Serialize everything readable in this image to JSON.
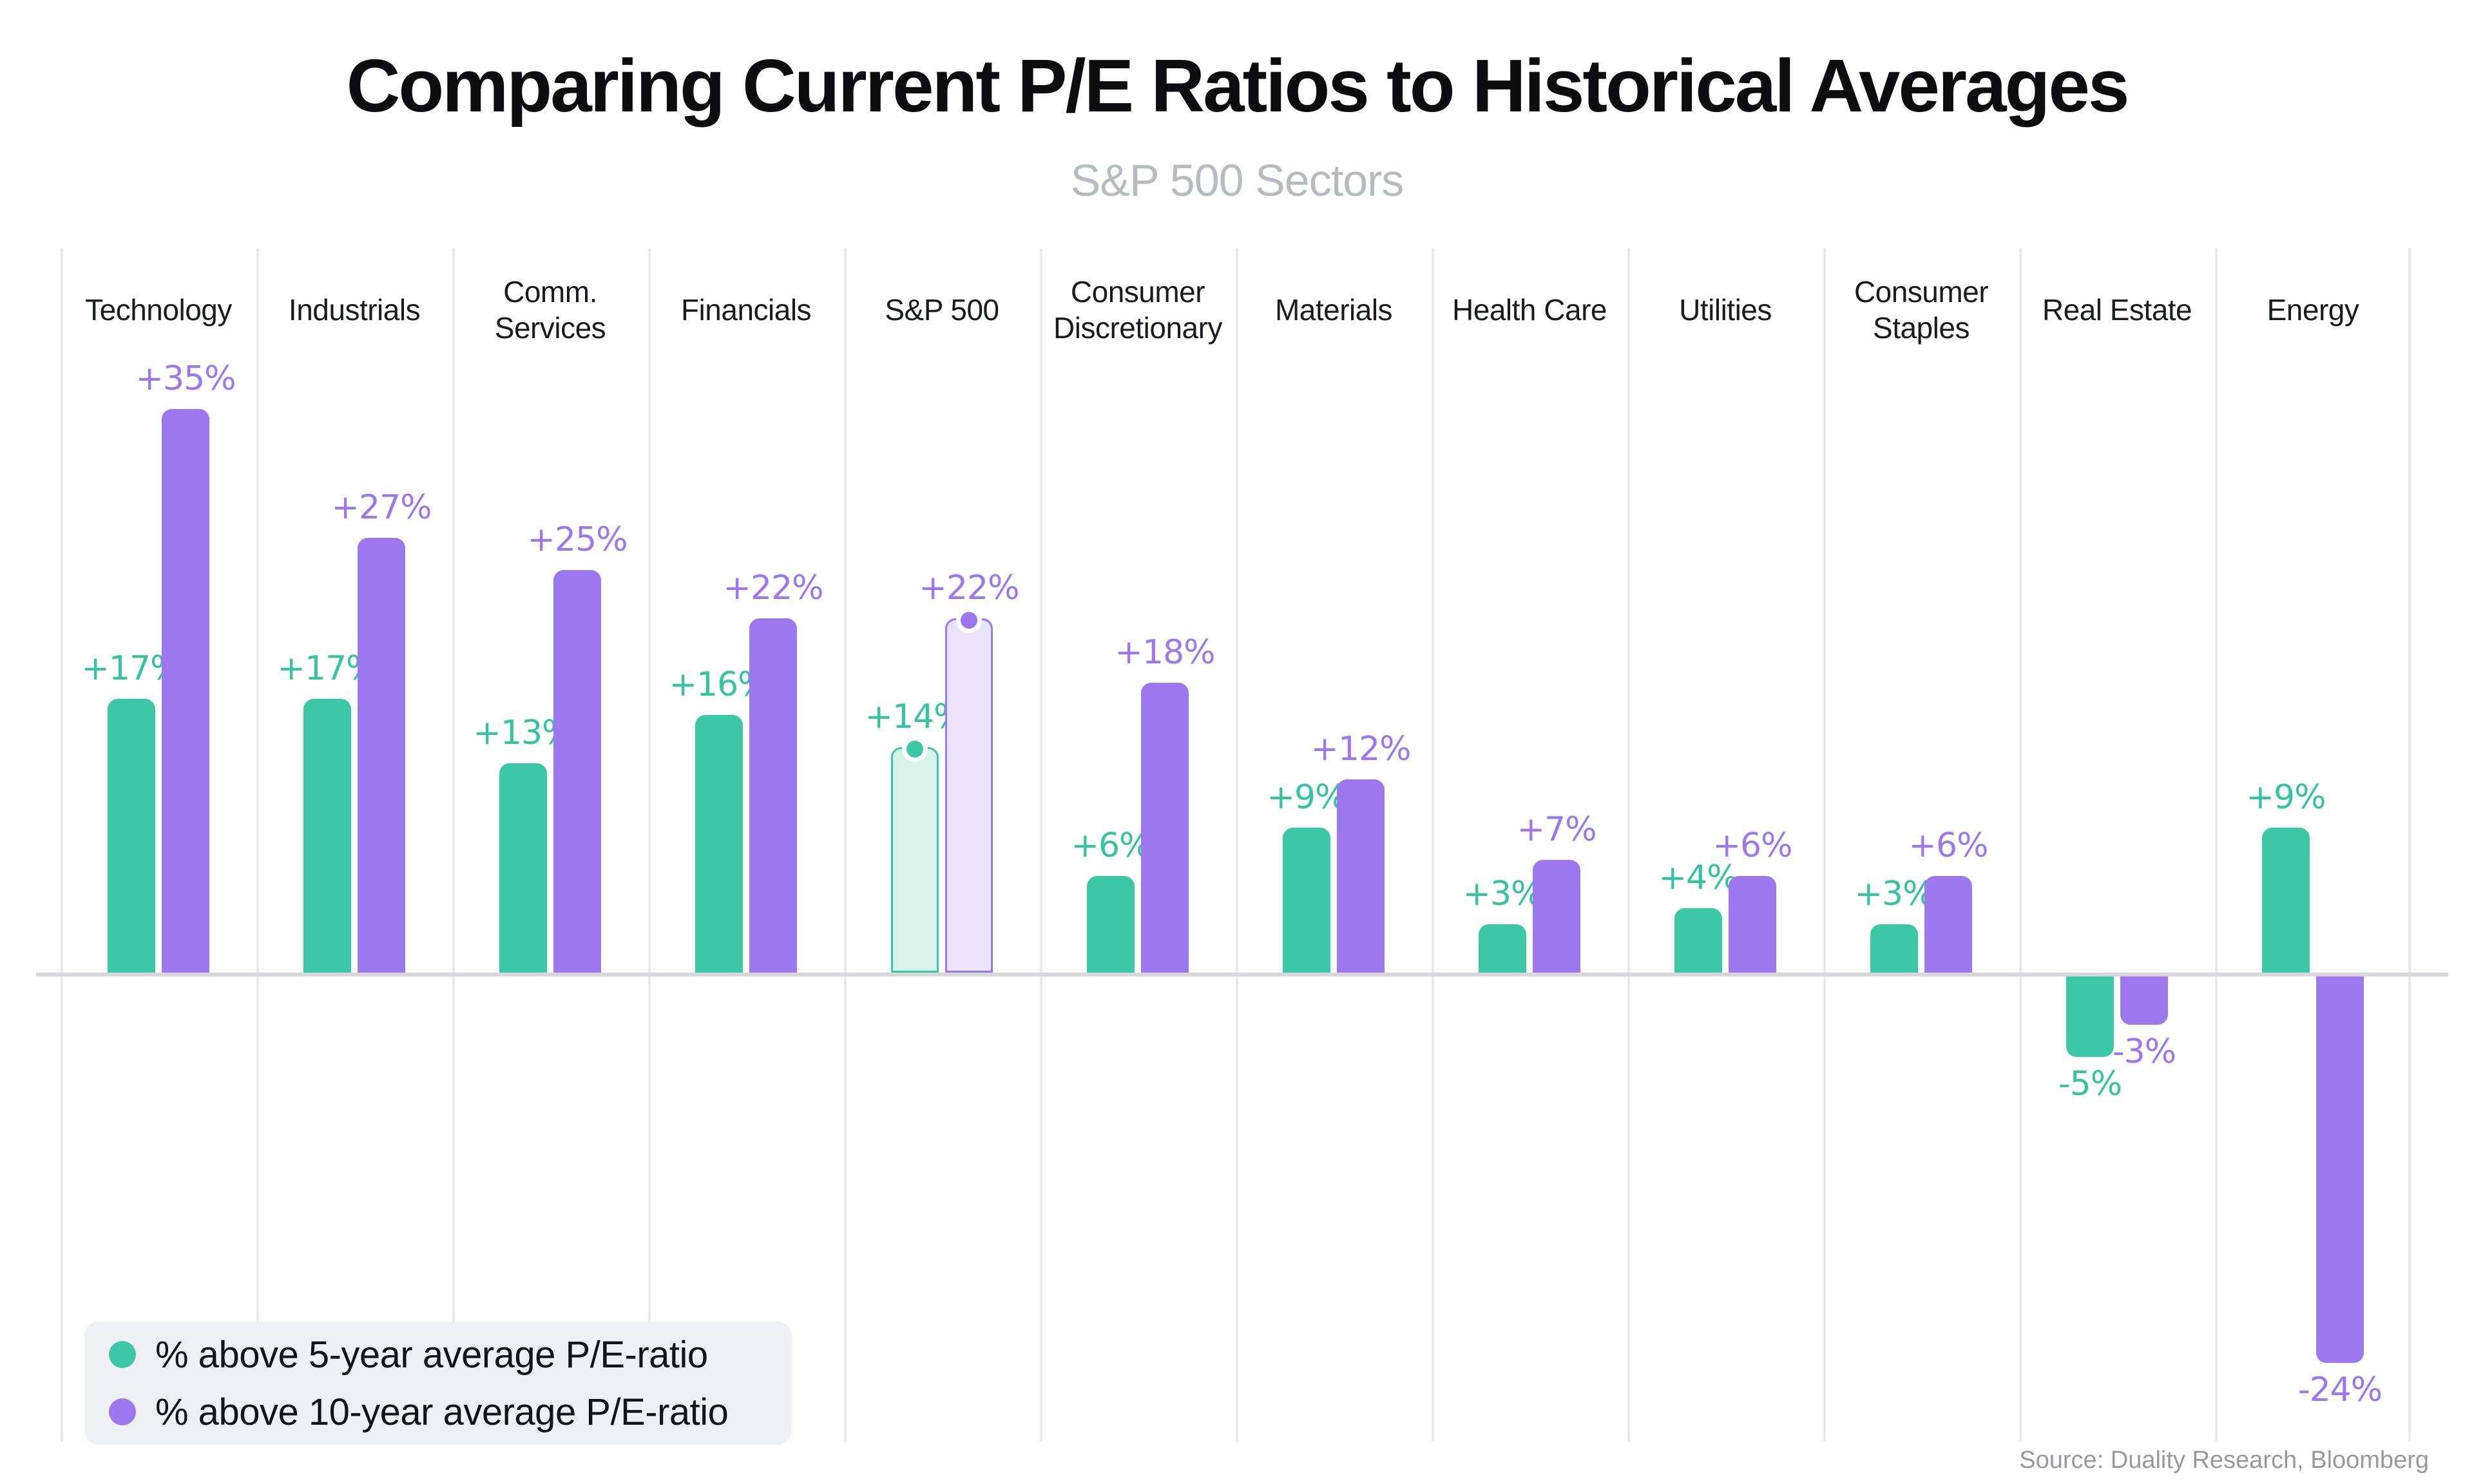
{
  "header": {
    "title": "Comparing Current P/E Ratios to Historical Averages",
    "subtitle": "S&P 500 Sectors"
  },
  "chart_data": {
    "type": "bar",
    "title": "Comparing Current P/E Ratios to Historical Averages",
    "subtitle": "S&P 500 Sectors",
    "categories": [
      "Technology",
      "Industrials",
      "Comm.\nServices",
      "Financials",
      "S&P 500",
      "Consumer\nDiscretionary",
      "Materials",
      "Health Care",
      "Utilities",
      "Consumer\nStaples",
      "Real Estate",
      "Energy"
    ],
    "series": [
      {
        "name": "% above 5-year average P/E-ratio",
        "color_key": "green",
        "values": [
          17,
          17,
          13,
          16,
          14,
          6,
          9,
          3,
          4,
          3,
          -5,
          9
        ],
        "labels": [
          "+17%",
          "+17%",
          "+13%",
          "+16%",
          "+14%",
          "+6%",
          "+9%",
          "+3%",
          "+4%",
          "+3%",
          "-5%",
          "+9%"
        ]
      },
      {
        "name": "% above 10-year average P/E-ratio",
        "color_key": "purple",
        "values": [
          35,
          27,
          25,
          22,
          22,
          18,
          12,
          7,
          6,
          6,
          -3,
          -24
        ],
        "labels": [
          "+35%",
          "+27%",
          "+25%",
          "+22%",
          "+22%",
          "+18%",
          "+12%",
          "+7%",
          "+6%",
          "+6%",
          "-3%",
          "-24%"
        ]
      }
    ],
    "highlight_category": "S&P 500",
    "highlight_index": 4,
    "axis": {
      "baseline_value": 0,
      "unit": "%",
      "gridlines": "vertical-between-categories",
      "value_labels_on_bars": true
    },
    "legend_position": "bottom-left",
    "source": "Source: Duality Research, Bloomberg"
  },
  "legend": {
    "items": [
      {
        "icon": "green-dot-icon",
        "label": "% above 5-year average P/E-ratio"
      },
      {
        "icon": "purple-dot-icon",
        "label": "% above 10-year average P/E-ratio"
      }
    ]
  },
  "source_note": "Source: Duality Research, Bloomberg",
  "colors": {
    "green": "#3CC8A6",
    "purple": "#9C77EE",
    "green_light_fill": "#D7F2E8",
    "purple_light_fill": "#EAE4FB",
    "green_label": "#35C3A1",
    "purple_label": "#9C77EE",
    "gridline": "#EAEAEE",
    "baseline": "#D7D7DC",
    "legend_bg": "#EEF0F4",
    "legend_text": "#131417",
    "title": "#0D0D0F",
    "subtitle": "#B7BABF",
    "sector_label": "#1A1B1E",
    "source": "#98989F"
  }
}
